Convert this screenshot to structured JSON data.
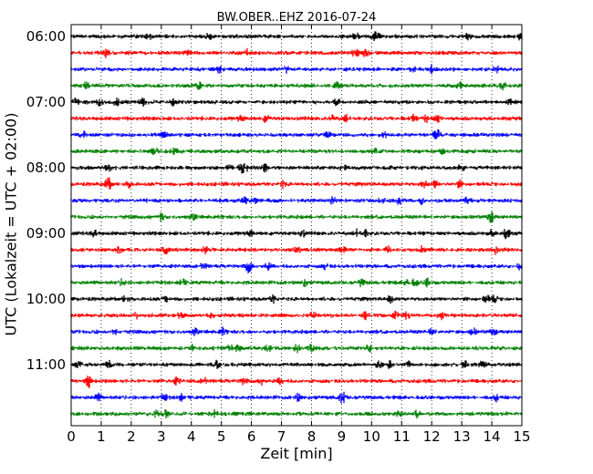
{
  "chart_data": {
    "type": "line",
    "title": "BW.OBER..EHZ 2016-07-24",
    "xlabel": "Zeit  [min]",
    "ylabel": "UTC (Lokalzeit = UTC + 02:00)",
    "xlim": [
      0,
      15
    ],
    "x_ticks": [
      "0",
      "1",
      "2",
      "3",
      "4",
      "5",
      "6",
      "7",
      "8",
      "9",
      "10",
      "11",
      "12",
      "13",
      "14",
      "15"
    ],
    "y_tick_labels": [
      "06:00",
      "07:00",
      "08:00",
      "09:00",
      "10:00",
      "11:00"
    ],
    "trace_start_times": [
      "06:00",
      "06:15",
      "06:30",
      "06:45",
      "07:00",
      "07:15",
      "07:30",
      "07:45",
      "08:00",
      "08:15",
      "08:30",
      "08:45",
      "09:00",
      "09:15",
      "09:30",
      "09:45",
      "10:00",
      "10:15",
      "10:30",
      "10:45",
      "11:00",
      "11:15",
      "11:30",
      "11:45"
    ],
    "trace_colors": [
      "#000000",
      "#ff0000",
      "#0000ff",
      "#008000"
    ],
    "grid": "vertical dotted",
    "legend": "none"
  }
}
